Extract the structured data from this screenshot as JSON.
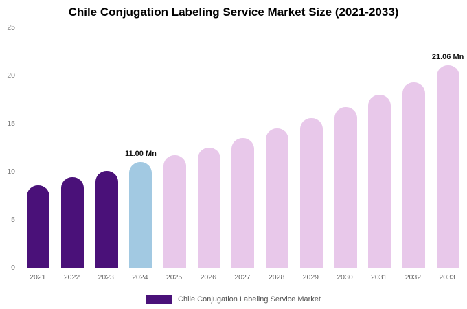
{
  "title": "Chile Conjugation Labeling Service Market Size (2021-2033)",
  "legend": {
    "label": "Chile Conjugation Labeling Service Market",
    "swatch_color": "#4a1179"
  },
  "colors": {
    "dark_purple": "#4a1179",
    "light_blue": "#a2c9e2",
    "light_pink": "#e8c8ea"
  },
  "chart_data": {
    "type": "bar",
    "title": "Chile Conjugation Labeling Service Market Size (2021-2033)",
    "categories": [
      "2021",
      "2022",
      "2023",
      "2024",
      "2025",
      "2026",
      "2027",
      "2028",
      "2029",
      "2030",
      "2031",
      "2032",
      "2033"
    ],
    "values": [
      8.6,
      9.4,
      10.1,
      11.0,
      11.7,
      12.5,
      13.5,
      14.5,
      15.55,
      16.7,
      18.0,
      19.3,
      21.06
    ],
    "bar_colors": [
      "#4a1179",
      "#4a1179",
      "#4a1179",
      "#a2c9e2",
      "#e8c8ea",
      "#e8c8ea",
      "#e8c8ea",
      "#e8c8ea",
      "#e8c8ea",
      "#e8c8ea",
      "#e8c8ea",
      "#e8c8ea",
      "#e8c8ea"
    ],
    "annotations": [
      {
        "index": 3,
        "text": "11.00 Mn"
      },
      {
        "index": 12,
        "text": "21.06 Mn"
      }
    ],
    "xlabel": "",
    "ylabel": "",
    "ylim": [
      0,
      25
    ],
    "yticks": [
      0,
      5,
      10,
      15,
      20,
      25
    ],
    "grid": false,
    "legend_position": "bottom"
  }
}
